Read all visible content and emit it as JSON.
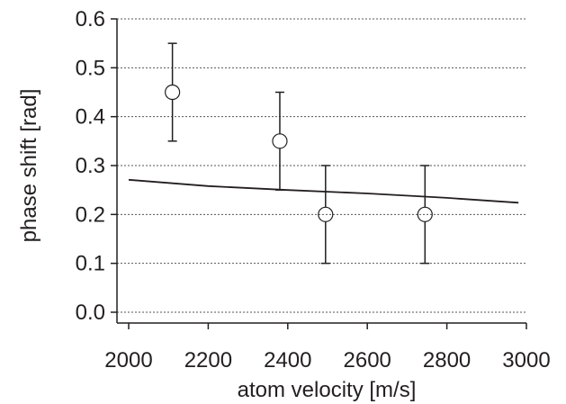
{
  "chart_data": {
    "type": "scatter",
    "title": "",
    "xlabel": "atom velocity [m/s]",
    "ylabel": "phase shift [rad]",
    "xlim": [
      2000,
      3000
    ],
    "ylim": [
      0.0,
      0.6
    ],
    "x_ticks": [
      2000,
      2200,
      2400,
      2600,
      2800,
      3000
    ],
    "y_ticks": [
      "0.0",
      "0.1",
      "0.2",
      "0.3",
      "0.4",
      "0.5",
      "0.6"
    ],
    "grid": "horizontal dotted",
    "series": [
      {
        "kind": "points_with_error_bars",
        "marker": "open-circle",
        "points": [
          {
            "x": 2110,
            "y": 0.45,
            "err": 0.1
          },
          {
            "x": 2380,
            "y": 0.35,
            "err": 0.1
          },
          {
            "x": 2495,
            "y": 0.2,
            "err": 0.1
          },
          {
            "x": 2745,
            "y": 0.2,
            "err": 0.1
          }
        ]
      },
      {
        "kind": "line",
        "x": [
          2000,
          2200,
          2400,
          2600,
          2800,
          2980
        ],
        "y": [
          0.271,
          0.258,
          0.25,
          0.243,
          0.234,
          0.224
        ]
      }
    ]
  }
}
